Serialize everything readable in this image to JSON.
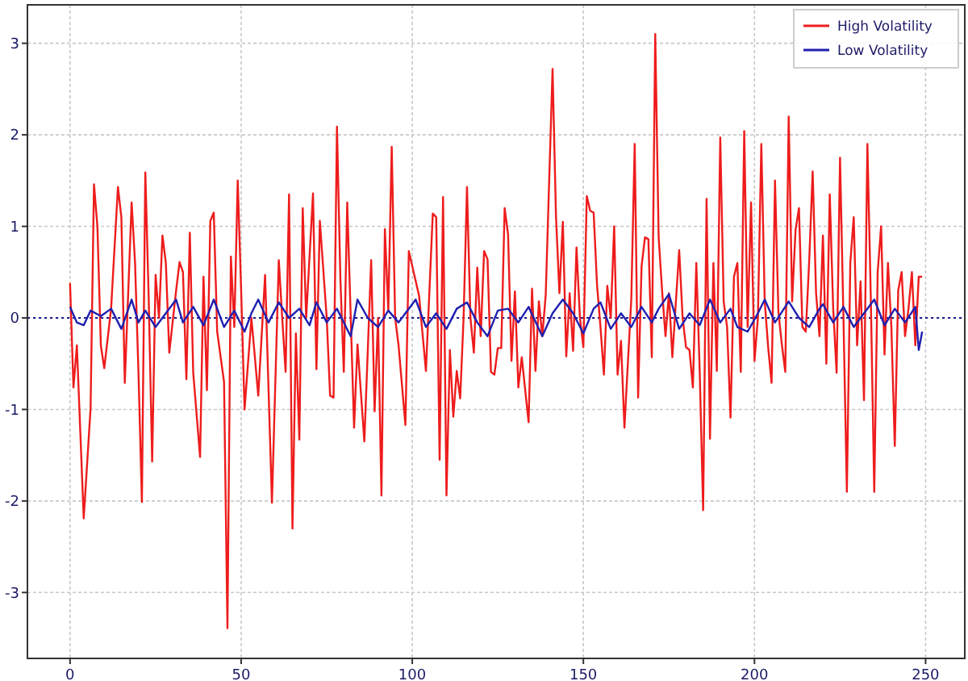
{
  "chart_data": {
    "type": "line",
    "xlim": [
      -12.45,
      261.45
    ],
    "ylim": [
      -3.72,
      3.42
    ],
    "xticks": [
      0,
      50,
      100,
      150,
      200,
      250
    ],
    "yticks": [
      -3,
      -2,
      -1,
      0,
      1,
      2,
      3
    ],
    "grid": true,
    "legend": "top right",
    "line_style": "solid",
    "ref_lines": [
      {
        "axis": "y",
        "value": 0,
        "color": "#1a1a8c",
        "line_style": "dotted"
      }
    ],
    "series": [
      {
        "name": "High Volatility",
        "color": "#ee1c1c",
        "x": [
          0,
          1,
          2,
          4,
          6,
          7,
          8,
          9,
          10,
          12,
          14,
          15,
          16,
          18,
          19,
          20,
          21,
          22,
          23,
          24,
          25,
          26,
          27,
          28,
          29,
          31,
          32,
          33,
          34,
          35,
          36,
          38,
          39,
          40,
          41,
          42,
          43,
          45,
          46,
          47,
          48,
          49,
          50,
          51,
          53,
          55,
          57,
          59,
          61,
          62,
          63,
          64,
          65,
          66,
          67,
          68,
          69,
          71,
          72,
          73,
          75,
          76,
          77,
          78,
          79,
          80,
          81,
          83,
          84,
          86,
          88,
          89,
          90,
          91,
          92,
          93,
          94,
          95,
          96,
          98,
          99,
          102,
          104,
          106,
          107,
          108,
          109,
          110,
          111,
          112,
          113,
          114,
          115,
          116,
          117,
          118,
          119,
          120,
          121,
          122,
          123,
          124,
          125,
          126,
          127,
          128,
          129,
          130,
          131,
          132,
          134,
          135,
          136,
          137,
          138,
          139,
          141,
          142,
          143,
          144,
          145,
          146,
          147,
          148,
          149,
          150,
          151,
          152,
          153,
          154,
          155,
          156,
          157,
          158,
          159,
          160,
          161,
          162,
          164,
          165,
          166,
          167,
          168,
          169,
          170,
          171,
          172,
          173,
          174,
          175,
          176,
          178,
          179,
          180,
          181,
          182,
          183,
          184,
          185,
          186,
          187,
          188,
          189,
          190,
          191,
          192,
          193,
          194,
          195,
          196,
          197,
          198,
          199,
          200,
          201,
          202,
          203,
          204,
          205,
          206,
          207,
          208,
          209,
          210,
          211,
          212,
          213,
          214,
          215,
          216,
          217,
          218,
          219,
          220,
          221,
          222,
          223,
          224,
          225,
          226,
          227,
          228,
          229,
          230,
          231,
          232,
          233,
          234,
          235,
          236,
          237,
          238,
          239,
          240,
          241,
          242,
          243,
          244,
          245,
          246,
          247,
          248,
          249
        ],
        "values": [
          0.38,
          -0.76,
          -0.3,
          -2.19,
          -0.99,
          1.46,
          1.0,
          -0.3,
          -0.55,
          0.1,
          1.43,
          1.1,
          -0.71,
          1.26,
          0.6,
          -0.6,
          -2.01,
          1.59,
          0.2,
          -1.57,
          0.47,
          0.0,
          0.9,
          0.6,
          -0.38,
          0.3,
          0.61,
          0.5,
          -0.67,
          0.93,
          -0.6,
          -1.52,
          0.45,
          -0.79,
          1.06,
          1.15,
          -0.15,
          -0.7,
          -3.39,
          0.67,
          -0.1,
          1.5,
          0.3,
          -1.0,
          0.0,
          -0.85,
          0.47,
          -2.02,
          0.63,
          0.0,
          -0.59,
          1.35,
          -2.3,
          -0.17,
          -1.33,
          1.2,
          0.0,
          1.36,
          -0.56,
          1.06,
          0.0,
          -0.85,
          -0.87,
          2.09,
          0.42,
          -0.59,
          1.26,
          -1.2,
          -0.29,
          -1.35,
          0.63,
          -1.02,
          0.0,
          -1.94,
          0.97,
          0.08,
          1.87,
          0.0,
          -0.3,
          -1.17,
          0.73,
          0.24,
          -0.58,
          1.14,
          1.1,
          -1.55,
          1.32,
          -1.94,
          -0.35,
          -1.08,
          -0.58,
          -0.88,
          0.0,
          1.43,
          0.0,
          -0.38,
          0.55,
          -0.2,
          0.73,
          0.64,
          -0.59,
          -0.62,
          -0.33,
          -0.33,
          1.2,
          0.91,
          -0.47,
          0.29,
          -0.76,
          -0.43,
          -1.14,
          0.32,
          -0.58,
          0.18,
          -0.2,
          0.25,
          2.72,
          1.11,
          0.27,
          1.05,
          -0.42,
          0.27,
          -0.36,
          0.77,
          0.0,
          -0.32,
          1.33,
          1.17,
          1.15,
          0.36,
          -0.1,
          -0.62,
          0.35,
          0.0,
          1.0,
          -0.62,
          -0.25,
          -1.2,
          0.2,
          1.9,
          -0.87,
          0.56,
          0.88,
          0.86,
          -0.43,
          3.1,
          0.88,
          0.3,
          -0.2,
          0.27,
          -0.43,
          0.74,
          0.0,
          -0.32,
          -0.35,
          -0.76,
          0.6,
          -0.59,
          -2.1,
          1.3,
          -1.32,
          0.6,
          -0.58,
          1.97,
          0.18,
          -0.1,
          -1.09,
          0.45,
          0.6,
          -0.59,
          2.04,
          -0.1,
          1.26,
          -0.47,
          0.0,
          1.9,
          0.18,
          -0.32,
          -0.71,
          1.5,
          0.06,
          -0.29,
          -0.59,
          2.2,
          0.18,
          0.96,
          1.2,
          -0.1,
          -0.15,
          0.63,
          1.6,
          0.27,
          -0.2,
          0.9,
          -0.5,
          1.35,
          0.1,
          -0.6,
          1.75,
          0.0,
          -1.9,
          0.6,
          1.1,
          -0.3,
          0.4,
          -0.9,
          1.9,
          0.2,
          -1.9,
          0.5,
          1.0,
          -0.4,
          0.6,
          -0.1,
          -1.4,
          0.3,
          0.5,
          -0.2,
          0.1,
          0.5,
          -0.3,
          0.45,
          0.45
        ]
      },
      {
        "name": "Low Volatility",
        "color": "#1f1fb0",
        "x": [
          0,
          2,
          4,
          6,
          9,
          12,
          15,
          18,
          20,
          22,
          25,
          28,
          31,
          33,
          36,
          39,
          42,
          45,
          48,
          51,
          53,
          55,
          58,
          61,
          64,
          67,
          70,
          72,
          75,
          78,
          82,
          84,
          87,
          90,
          93,
          96,
          98,
          101,
          104,
          107,
          110,
          113,
          116,
          119,
          122,
          125,
          128,
          131,
          134,
          138,
          141,
          144,
          147,
          150,
          153,
          155,
          158,
          161,
          164,
          167,
          170,
          172,
          175,
          178,
          181,
          184,
          187,
          190,
          193,
          195,
          198,
          201,
          203,
          206,
          210,
          213,
          216,
          219,
          220,
          223,
          226,
          229,
          232,
          235,
          238,
          241,
          244,
          247,
          248,
          249
        ],
        "values": [
          0.12,
          -0.05,
          -0.08,
          0.08,
          0.02,
          0.1,
          -0.12,
          0.2,
          -0.05,
          0.08,
          -0.1,
          0.05,
          0.2,
          -0.05,
          0.12,
          -0.08,
          0.2,
          -0.1,
          0.08,
          -0.15,
          0.05,
          0.2,
          -0.05,
          0.17,
          0.0,
          0.1,
          -0.08,
          0.17,
          -0.05,
          0.1,
          -0.2,
          0.2,
          0.0,
          -0.1,
          0.08,
          -0.05,
          0.05,
          0.2,
          -0.1,
          0.05,
          -0.12,
          0.1,
          0.17,
          -0.05,
          -0.2,
          0.08,
          0.1,
          -0.05,
          0.12,
          -0.2,
          0.05,
          0.2,
          0.05,
          -0.17,
          0.1,
          0.17,
          -0.12,
          0.05,
          -0.1,
          0.12,
          -0.05,
          0.1,
          0.26,
          -0.12,
          0.05,
          -0.08,
          0.2,
          -0.05,
          0.1,
          -0.1,
          -0.15,
          0.05,
          0.2,
          -0.05,
          0.18,
          0.0,
          -0.1,
          0.1,
          0.15,
          -0.05,
          0.12,
          -0.1,
          0.05,
          0.2,
          -0.08,
          0.1,
          -0.05,
          0.12,
          -0.35,
          -0.15
        ]
      }
    ]
  }
}
